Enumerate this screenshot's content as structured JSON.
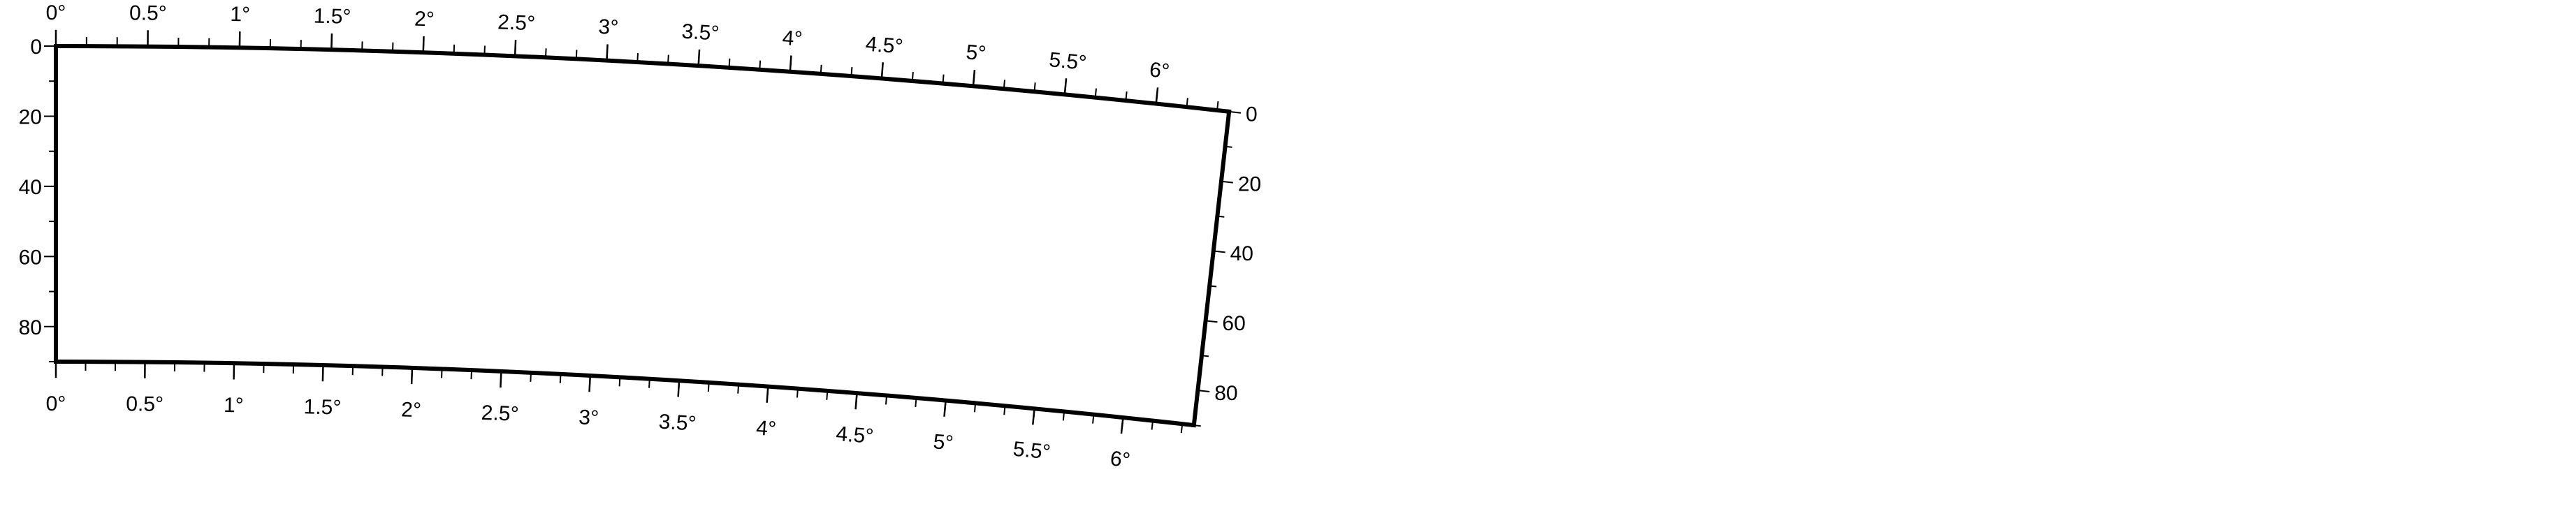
{
  "chart_data": {
    "type": "polar-annulus-frame",
    "title": "",
    "theta_axis": {
      "range": [
        0,
        6.4
      ],
      "unit": "°",
      "major_ticks": [
        0,
        0.5,
        1,
        1.5,
        2,
        2.5,
        3,
        3.5,
        4,
        4.5,
        5,
        5.5,
        6
      ],
      "major_labels": [
        "0°",
        "0.5°",
        "1°",
        "1.5°",
        "2°",
        "2.5°",
        "3°",
        "3.5°",
        "4°",
        "4.5°",
        "5°",
        "5.5°",
        "6°"
      ],
      "minor_step": 0.1667
    },
    "radial_axis": {
      "range": [
        0,
        90
      ],
      "major_ticks": [
        0,
        20,
        40,
        60,
        80
      ],
      "major_labels": [
        "0",
        "20",
        "40",
        "60",
        "80"
      ],
      "minor_step": 10,
      "left_side": {
        "ticks": [
          0,
          20,
          40,
          60,
          80
        ],
        "labels": [
          "0",
          "20",
          "40",
          "60",
          "80"
        ]
      },
      "right_side": {
        "ticks": [
          0,
          20,
          40,
          60,
          80
        ],
        "labels": [
          "0",
          "20",
          "40",
          "60",
          "80"
        ]
      }
    },
    "colors": {
      "frame": "#000000",
      "background": "#ffffff"
    },
    "grid": false,
    "legend": "none"
  }
}
